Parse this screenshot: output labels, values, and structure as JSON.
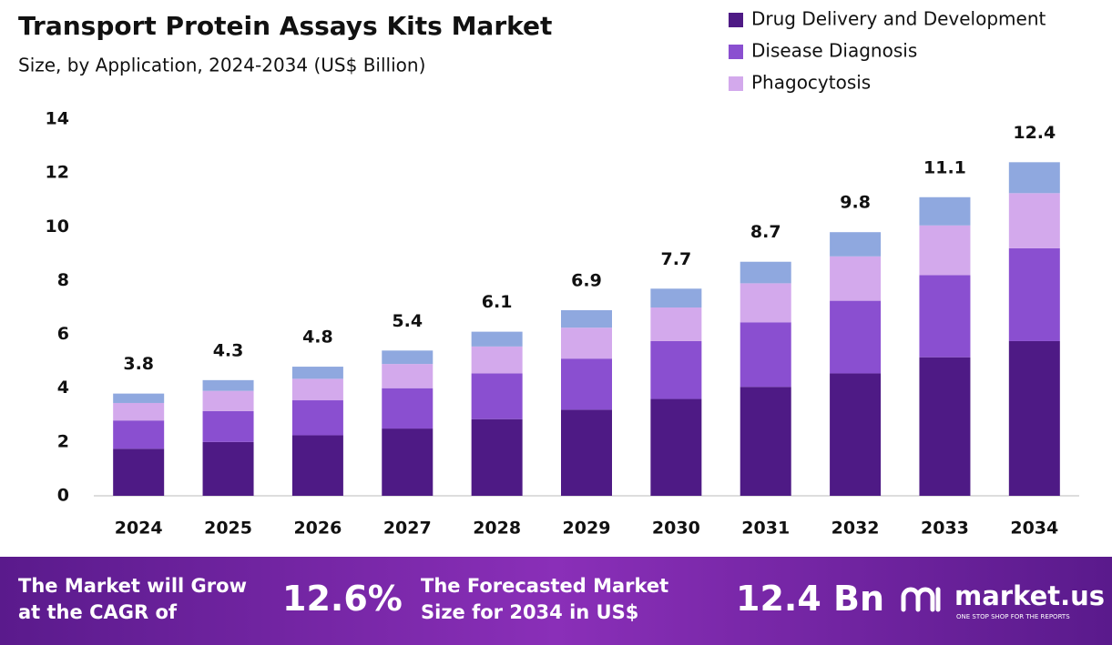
{
  "chart_data": {
    "type": "stacked_bar",
    "title": "Transport Protein Assays Kits Market",
    "subtitle": "Size, by Application, 2024-2034 (US$ Billion)",
    "categories": [
      "2024",
      "2025",
      "2026",
      "2027",
      "2028",
      "2029",
      "2030",
      "2031",
      "2032",
      "2033",
      "2034"
    ],
    "series": [
      {
        "name": "Drug Delivery and Development",
        "color": "#4e1a85",
        "values": [
          1.75,
          2.0,
          2.25,
          2.5,
          2.85,
          3.2,
          3.6,
          4.05,
          4.55,
          5.15,
          5.75
        ]
      },
      {
        "name": "Disease Diagnosis",
        "color": "#8a4fd0",
        "values": [
          1.05,
          1.15,
          1.3,
          1.5,
          1.7,
          1.9,
          2.15,
          2.4,
          2.7,
          3.05,
          3.45
        ]
      },
      {
        "name": "Phagocytosis",
        "color": "#d3a9ec",
        "values": [
          0.65,
          0.75,
          0.8,
          0.9,
          1.0,
          1.15,
          1.25,
          1.45,
          1.65,
          1.85,
          2.05
        ]
      },
      {
        "color": "#8fa8df",
        "values": [
          0.35,
          0.4,
          0.45,
          0.5,
          0.55,
          0.65,
          0.7,
          0.8,
          0.9,
          1.05,
          1.15
        ]
      }
    ],
    "totals": [
      3.8,
      4.3,
      4.8,
      5.4,
      6.1,
      6.9,
      7.7,
      8.7,
      9.8,
      11.1,
      12.4
    ],
    "ylim": [
      0,
      14
    ],
    "yticks": [
      0,
      2,
      4,
      6,
      8,
      10,
      12,
      14
    ],
    "grid": false,
    "legend": "top-right"
  },
  "footer": {
    "cagr_text": "The Market will Grow at the CAGR of",
    "cagr_value": "12.6%",
    "forecast_text": "The Forecasted Market Size for 2034 in US$",
    "forecast_value": "12.4 Bn",
    "brand": "market.us",
    "tagline": "ONE STOP SHOP FOR THE REPORTS"
  }
}
